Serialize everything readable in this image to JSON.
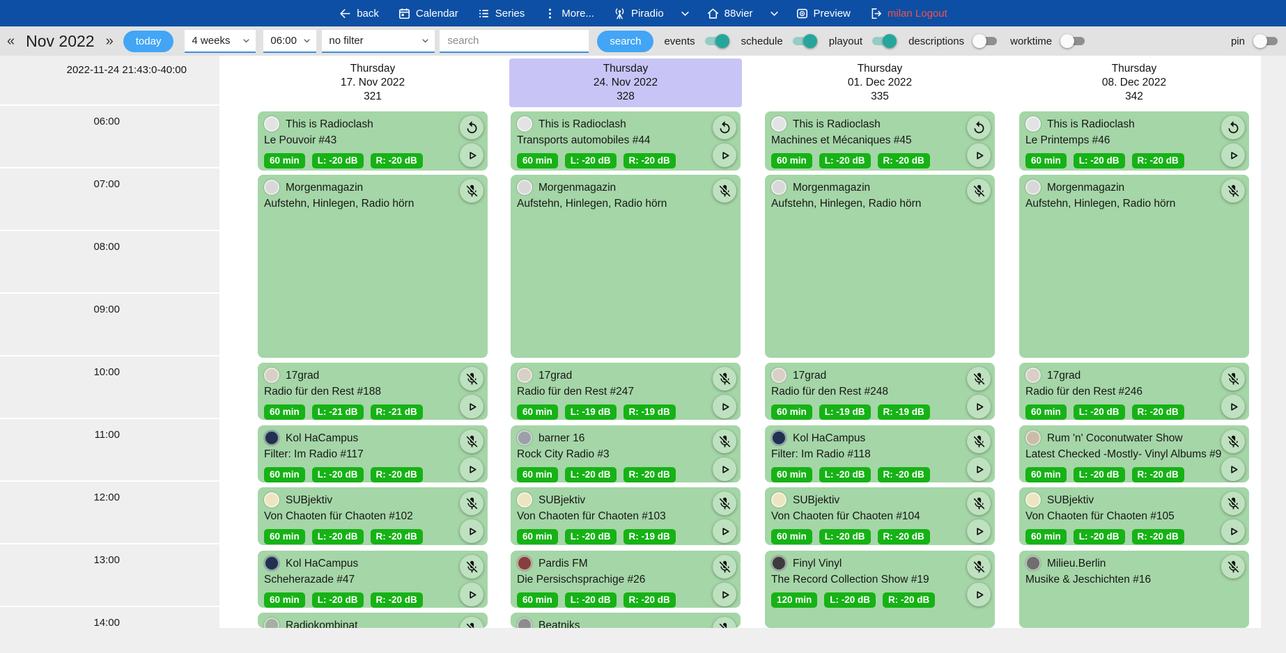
{
  "navbar": {
    "items": [
      {
        "id": "back",
        "label": "back",
        "icon": "arrow-left"
      },
      {
        "id": "calendar",
        "label": "Calendar",
        "icon": "calendar"
      },
      {
        "id": "series",
        "label": "Series",
        "icon": "list"
      },
      {
        "id": "more",
        "label": "More...",
        "icon": "dots-vertical"
      },
      {
        "id": "piradio",
        "label": "Piradio",
        "icon": "antenna"
      },
      {
        "id": "piradio-menu",
        "label": "",
        "icon": "chevron-down"
      },
      {
        "id": "station-88vier",
        "label": "88vier",
        "icon": "home"
      },
      {
        "id": "station-menu",
        "label": "",
        "icon": "chevron-down"
      },
      {
        "id": "preview",
        "label": "Preview",
        "icon": "preview-eye"
      },
      {
        "id": "logout",
        "label": "milan Logout",
        "icon": "logout",
        "accent": true
      }
    ]
  },
  "toolbar": {
    "prev": "«",
    "month": "Nov 2022",
    "next": "»",
    "today_label": "today",
    "range_value": "4 weeks",
    "start_value": "06:00",
    "filter_value": "no filter",
    "search_placeholder": "search",
    "search_label": "search",
    "toggles": [
      {
        "label": "events",
        "on": true
      },
      {
        "label": "schedule",
        "on": true
      },
      {
        "label": "playout",
        "on": true
      },
      {
        "label": "descriptions",
        "on": false
      },
      {
        "label": "worktime",
        "on": false
      }
    ],
    "pin": {
      "label": "pin",
      "on": false
    }
  },
  "colors": {
    "navbar_bg": "#0d4fa4",
    "accent_button": "#42a5f5",
    "logout_text": "#ef5350",
    "event_bg": "#a5d6a7",
    "badge_bg": "#16b216",
    "highlight_bg": "#c8c5f6",
    "toggle_on": "#26a69a"
  },
  "timeline": {
    "stamp": "2022-11-24 21:43:0-40:00",
    "hours": [
      "06:00",
      "07:00",
      "08:00",
      "09:00",
      "10:00",
      "11:00",
      "12:00",
      "13:00",
      "14:00"
    ]
  },
  "columns": [
    {
      "weekday": "Thursday",
      "date": "17. Nov 2022",
      "day_number": "321",
      "highlighted": false,
      "events": [
        {
          "slot": "A",
          "avatar": "#e3e3e3",
          "title": "This is Radioclash",
          "subtitle": "Le Pouvoir #43",
          "badges": [
            "60 min",
            "L: -20 dB",
            "R: -20 dB"
          ],
          "buttons": [
            "replay",
            "play"
          ]
        },
        {
          "slot": "B",
          "avatar": "#d8d8d8",
          "title": "Morgenmagazin",
          "subtitle": "Aufstehn, Hinlegen, Radio hörn",
          "badges": [],
          "buttons": [
            "mic-off"
          ]
        },
        {
          "slot": "C",
          "avatar": "#d8cfc5",
          "title": "17grad",
          "subtitle": "Radio für den Rest #188",
          "badges": [
            "60 min",
            "L: -21 dB",
            "R: -21 dB"
          ],
          "buttons": [
            "mic-off",
            "play"
          ]
        },
        {
          "slot": "D",
          "avatar": "#20304f",
          "title": "Kol HaCampus",
          "subtitle": "Filter: Im Radio #117",
          "badges": [
            "60 min",
            "L: -20 dB",
            "R: -20 dB"
          ],
          "buttons": [
            "mic-off",
            "play"
          ]
        },
        {
          "slot": "E",
          "avatar": "#ece5c0",
          "title": "SUBjektiv",
          "subtitle": "Von Chaoten für Chaoten #102",
          "badges": [
            "60 min",
            "L: -20 dB",
            "R: -20 dB"
          ],
          "buttons": [
            "mic-off",
            "play"
          ]
        },
        {
          "slot": "F",
          "avatar": "#20304f",
          "title": "Kol HaCampus",
          "subtitle": "Scheherazade #47",
          "badges": [
            "60 min",
            "L: -20 dB",
            "R: -20 dB"
          ],
          "buttons": [
            "mic-off",
            "play"
          ]
        },
        {
          "slot": "G",
          "avatar": "#a3b2a0",
          "title": "Radiokombinat",
          "subtitle": "",
          "badges": [],
          "buttons": [
            "mic-off"
          ]
        }
      ]
    },
    {
      "weekday": "Thursday",
      "date": "24. Nov 2022",
      "day_number": "328",
      "highlighted": true,
      "events": [
        {
          "slot": "A",
          "avatar": "#e3e3e3",
          "title": "This is Radioclash",
          "subtitle": "Transports automobiles #44",
          "badges": [
            "60 min",
            "L: -20 dB",
            "R: -20 dB"
          ],
          "buttons": [
            "replay",
            "play"
          ]
        },
        {
          "slot": "B",
          "avatar": "#d8d8d8",
          "title": "Morgenmagazin",
          "subtitle": "Aufstehn, Hinlegen, Radio hörn",
          "badges": [],
          "buttons": [
            "mic-off"
          ]
        },
        {
          "slot": "C",
          "avatar": "#d8cfc5",
          "title": "17grad",
          "subtitle": "Radio für den Rest #247",
          "badges": [
            "60 min",
            "L: -19 dB",
            "R: -19 dB"
          ],
          "buttons": [
            "mic-off",
            "play"
          ]
        },
        {
          "slot": "D",
          "avatar": "#9aa0a6",
          "title": "barner 16",
          "subtitle": "Rock City Radio #3",
          "badges": [
            "60 min",
            "L: -20 dB",
            "R: -20 dB"
          ],
          "buttons": [
            "mic-off",
            "play"
          ]
        },
        {
          "slot": "E",
          "avatar": "#ece5c0",
          "title": "SUBjektiv",
          "subtitle": "Von Chaoten für Chaoten #103",
          "badges": [
            "60 min",
            "L: -20 dB",
            "R: -19 dB"
          ],
          "buttons": [
            "mic-off",
            "play"
          ]
        },
        {
          "slot": "F",
          "avatar": "#83403c",
          "title": "Pardis FM",
          "subtitle": "Die Persischsprachige #26",
          "badges": [
            "60 min",
            "L: -20 dB",
            "R: -20 dB"
          ],
          "buttons": [
            "mic-off",
            "play"
          ]
        },
        {
          "slot": "G",
          "avatar": "#8d8d8d",
          "title": "Beatniks",
          "subtitle": "",
          "badges": [],
          "buttons": [
            "mic-off"
          ]
        }
      ]
    },
    {
      "weekday": "Thursday",
      "date": "01. Dec 2022",
      "day_number": "335",
      "highlighted": false,
      "events": [
        {
          "slot": "A",
          "avatar": "#e3e3e3",
          "title": "This is Radioclash",
          "subtitle": "Machines et Mécaniques #45",
          "badges": [
            "60 min",
            "L: -20 dB",
            "R: -20 dB"
          ],
          "buttons": [
            "replay",
            "play"
          ]
        },
        {
          "slot": "B",
          "avatar": "#d8d8d8",
          "title": "Morgenmagazin",
          "subtitle": "Aufstehn, Hinlegen, Radio hörn",
          "badges": [],
          "buttons": [
            "mic-off"
          ]
        },
        {
          "slot": "C",
          "avatar": "#d8cfc5",
          "title": "17grad",
          "subtitle": "Radio für den Rest #248",
          "badges": [
            "60 min",
            "L: -19 dB",
            "R: -19 dB"
          ],
          "buttons": [
            "mic-off",
            "play"
          ]
        },
        {
          "slot": "D",
          "avatar": "#20304f",
          "title": "Kol HaCampus",
          "subtitle": "Filter: Im Radio #118",
          "badges": [
            "60 min",
            "L: -20 dB",
            "R: -20 dB"
          ],
          "buttons": [
            "mic-off",
            "play"
          ]
        },
        {
          "slot": "E",
          "avatar": "#ece5c0",
          "title": "SUBjektiv",
          "subtitle": "Von Chaoten für Chaoten #104",
          "badges": [
            "60 min",
            "L: -20 dB",
            "R: -20 dB"
          ],
          "buttons": [
            "mic-off",
            "play"
          ]
        },
        {
          "slot": "F-tall",
          "avatar": "#3c3c3c",
          "title": "Finyl Vinyl",
          "subtitle": "The Record Collection Show #19",
          "badges": [
            "120 min",
            "L: -20 dB",
            "R: -20 dB"
          ],
          "buttons": [
            "mic-off",
            "play"
          ]
        }
      ]
    },
    {
      "weekday": "Thursday",
      "date": "08. Dec 2022",
      "day_number": "342",
      "highlighted": false,
      "events": [
        {
          "slot": "A",
          "avatar": "#e3e3e3",
          "title": "This is Radioclash",
          "subtitle": "Le Printemps #46",
          "badges": [
            "60 min",
            "L: -20 dB",
            "R: -20 dB"
          ],
          "buttons": [
            "replay",
            "play"
          ]
        },
        {
          "slot": "B",
          "avatar": "#d8d8d8",
          "title": "Morgenmagazin",
          "subtitle": "Aufstehn, Hinlegen, Radio hörn",
          "badges": [],
          "buttons": [
            "mic-off"
          ]
        },
        {
          "slot": "C",
          "avatar": "#d8cfc5",
          "title": "17grad",
          "subtitle": "Radio für den Rest #246",
          "badges": [
            "60 min",
            "L: -20 dB",
            "R: -20 dB"
          ],
          "buttons": [
            "mic-off",
            "play"
          ]
        },
        {
          "slot": "D",
          "avatar": "#c9bda7",
          "title": "Rum 'n' Coconutwater Show",
          "subtitle": "Latest Checked -Mostly- Vinyl Albums #9",
          "badges": [
            "60 min",
            "L: -20 dB",
            "R: -20 dB"
          ],
          "buttons": [
            "mic-off",
            "play"
          ]
        },
        {
          "slot": "E",
          "avatar": "#ece5c0",
          "title": "SUBjektiv",
          "subtitle": "Von Chaoten für Chaoten #105",
          "badges": [
            "60 min",
            "L: -20 dB",
            "R: -20 dB"
          ],
          "buttons": [
            "mic-off",
            "play"
          ]
        },
        {
          "slot": "F-tall",
          "avatar": "#6e6e6e",
          "title": "Milieu.Berlin",
          "subtitle": "Musike & Jeschichten #16",
          "badges": [],
          "buttons": [
            "mic-off"
          ]
        }
      ]
    }
  ]
}
